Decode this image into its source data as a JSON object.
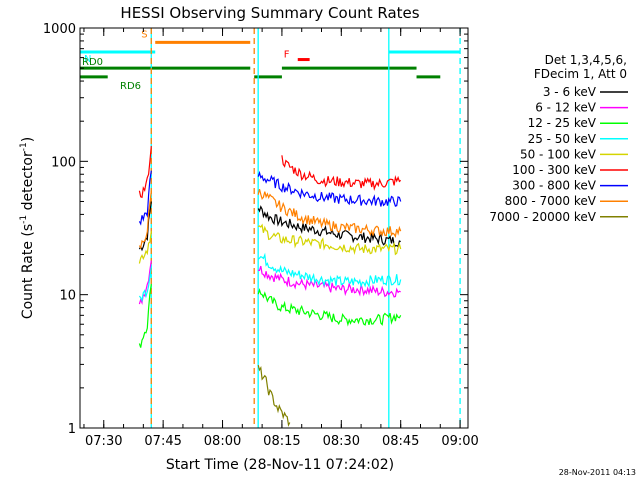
{
  "chart_data": {
    "type": "line",
    "title": "HESSI Observing Summary Count Rates",
    "xlabel": "Start Time (28-Nov-11 07:24:02)",
    "ylabel_parts": {
      "main": "Count Rate (s",
      "sup": "-1",
      "rest": " detector",
      "close": ")"
    },
    "yscale": "log",
    "ylim": [
      1,
      1000
    ],
    "xlim": [
      "07:24",
      "09:02"
    ],
    "x_ticks": [
      "07:30",
      "07:45",
      "08:00",
      "08:15",
      "08:30",
      "08:45",
      "09:00"
    ],
    "y_ticks": [
      "1",
      "10",
      "100",
      "1000"
    ],
    "footer_timestamp": "28-Nov-2011 04:13",
    "legend": {
      "header1": "Det 1,3,4,5,6,",
      "header2": "FDecim 1, Att 0",
      "placement": "right",
      "entries": [
        {
          "label": "3 - 6 keV",
          "color": "#000000"
        },
        {
          "label": "6 - 12 keV",
          "color": "#ff00ff"
        },
        {
          "label": "12 - 25 keV",
          "color": "#00ff00"
        },
        {
          "label": "25 - 50 keV",
          "color": "#00ffff"
        },
        {
          "label": "50 - 100 keV",
          "color": "#d4d400"
        },
        {
          "label": "100 - 300 keV",
          "color": "#ff0000"
        },
        {
          "label": "300 - 800 keV",
          "color": "#0000ff"
        },
        {
          "label": "800 - 7000 keV",
          "color": "#ff8000"
        },
        {
          "label": "7000 - 20000 keV",
          "color": "#808000"
        }
      ]
    },
    "flags": [
      {
        "label": "S",
        "color": "#ff8000",
        "value": 780,
        "segments": [
          [
            "07:43",
            "08:07"
          ]
        ]
      },
      {
        "label": "N",
        "color": "#00ffff",
        "value": 660,
        "segments": [
          [
            "07:24",
            "07:43"
          ],
          [
            "08:42",
            "09:00"
          ]
        ]
      },
      {
        "label": "F",
        "color": "#ff0000",
        "value": 580,
        "segments": [
          [
            "08:19",
            "08:22"
          ]
        ]
      },
      {
        "label": "RD0",
        "color": "#008000",
        "value": 500,
        "segments": [
          [
            "07:24",
            "08:07"
          ],
          [
            "08:15",
            "08:49"
          ]
        ]
      },
      {
        "label": "RD6",
        "color": "#008000",
        "value": 430,
        "segments": [
          [
            "07:24",
            "07:31"
          ],
          [
            "08:08",
            "08:15"
          ],
          [
            "08:49",
            "08:55"
          ]
        ]
      }
    ],
    "markers": [
      {
        "time": "07:42",
        "color": "#00ffff",
        "style": "solid"
      },
      {
        "time": "07:42",
        "color": "#ff8000",
        "style": "dashed"
      },
      {
        "time": "08:08",
        "color": "#ff8000",
        "style": "dashed"
      },
      {
        "time": "08:09",
        "color": "#00ffff",
        "style": "solid"
      },
      {
        "time": "08:42",
        "color": "#00ffff",
        "style": "solid"
      },
      {
        "time": "09:00",
        "color": "#00ffff",
        "style": "dashed"
      }
    ],
    "series": [
      {
        "name": "3 - 6 keV",
        "color": "#000000",
        "segments": [
          {
            "x": [
              "07:39",
              "07:40",
              "07:41",
              "07:42"
            ],
            "y": [
              22,
              24,
              28,
              50
            ]
          },
          {
            "x": [
              "08:09",
              "08:12",
              "08:15",
              "08:20",
              "08:25",
              "08:30",
              "08:35",
              "08:40",
              "08:45"
            ],
            "y": [
              45,
              38,
              35,
              32,
              30,
              28,
              27,
              26,
              25
            ]
          }
        ]
      },
      {
        "name": "6 - 12 keV",
        "color": "#ff00ff",
        "segments": [
          {
            "x": [
              "07:39",
              "07:40",
              "07:41",
              "07:42"
            ],
            "y": [
              8,
              10,
              12,
              18
            ]
          },
          {
            "x": [
              "08:09",
              "08:12",
              "08:15",
              "08:20",
              "08:25",
              "08:30",
              "08:35",
              "08:40",
              "08:45"
            ],
            "y": [
              16,
              14,
              13,
              12,
              11.5,
              11,
              11,
              10.5,
              10.5
            ]
          }
        ]
      },
      {
        "name": "12 - 25 keV",
        "color": "#00ff00",
        "segments": [
          {
            "x": [
              "07:39",
              "07:40",
              "07:41",
              "07:42"
            ],
            "y": [
              4,
              5,
              6,
              12
            ]
          },
          {
            "x": [
              "08:09",
              "08:12",
              "08:15",
              "08:20",
              "08:25",
              "08:30",
              "08:35",
              "08:40",
              "08:45"
            ],
            "y": [
              11,
              9,
              8,
              7.5,
              7,
              6.5,
              6.5,
              6.5,
              7
            ]
          }
        ]
      },
      {
        "name": "25 - 50 keV",
        "color": "#00ffff",
        "segments": [
          {
            "x": [
              "07:39",
              "07:40",
              "07:41",
              "07:42"
            ],
            "y": [
              9,
              10,
              11,
              16
            ]
          },
          {
            "x": [
              "08:09",
              "08:12",
              "08:15",
              "08:20",
              "08:25",
              "08:30",
              "08:35",
              "08:40",
              "08:45"
            ],
            "y": [
              20,
              17,
              15,
              14,
              13,
              12.5,
              12.5,
              13,
              13
            ]
          }
        ]
      },
      {
        "name": "50 - 100 keV",
        "color": "#d4d400",
        "segments": [
          {
            "x": [
              "07:39",
              "07:40",
              "07:41",
              "07:42"
            ],
            "y": [
              18,
              20,
              22,
              30
            ]
          },
          {
            "x": [
              "08:09",
              "08:12",
              "08:15",
              "08:20",
              "08:25",
              "08:30",
              "08:35",
              "08:40",
              "08:45"
            ],
            "y": [
              32,
              28,
              26,
              25,
              24,
              23,
              22,
              22,
              22
            ]
          }
        ]
      },
      {
        "name": "100 - 300 keV",
        "color": "#ff0000",
        "segments": [
          {
            "x": [
              "07:39",
              "07:40",
              "07:41",
              "07:42"
            ],
            "y": [
              55,
              60,
              70,
              130
            ]
          },
          {
            "x": [
              "08:15",
              "08:16",
              "08:20",
              "08:25",
              "08:30",
              "08:35",
              "08:40",
              "08:45"
            ],
            "y": [
              105,
              95,
              80,
              72,
              70,
              68,
              68,
              72
            ]
          }
        ]
      },
      {
        "name": "300 - 800 keV",
        "color": "#0000ff",
        "segments": [
          {
            "x": [
              "07:39",
              "07:40",
              "07:41",
              "07:42"
            ],
            "y": [
              35,
              38,
              42,
              85
            ]
          },
          {
            "x": [
              "08:09",
              "08:12",
              "08:15",
              "08:20",
              "08:25",
              "08:30",
              "08:35",
              "08:40",
              "08:45"
            ],
            "y": [
              78,
              72,
              65,
              58,
              54,
              52,
              51,
              50,
              50
            ]
          }
        ]
      },
      {
        "name": "800 - 7000 keV",
        "color": "#ff8000",
        "segments": [
          {
            "x": [
              "07:39",
              "07:40",
              "07:41",
              "07:42"
            ],
            "y": [
              22,
              25,
              30,
              60
            ]
          },
          {
            "x": [
              "08:09",
              "08:12",
              "08:15",
              "08:20",
              "08:25",
              "08:30",
              "08:35",
              "08:40",
              "08:45"
            ],
            "y": [
              60,
              52,
              45,
              38,
              34,
              32,
              31,
              30,
              30
            ]
          }
        ]
      },
      {
        "name": "7000 - 20000 keV",
        "color": "#808000",
        "segments": [
          {
            "x": [
              "08:09",
              "08:10",
              "08:11",
              "08:12",
              "08:13",
              "08:14",
              "08:15",
              "08:16",
              "08:17"
            ],
            "y": [
              2.8,
              2.5,
              2.2,
              1.8,
              1.6,
              1.4,
              1.3,
              1.2,
              1.1
            ]
          }
        ]
      }
    ]
  }
}
